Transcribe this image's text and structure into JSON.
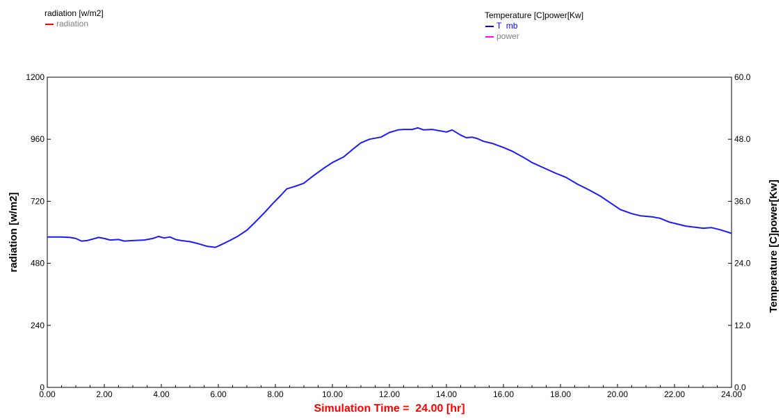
{
  "legend_left": {
    "title": "radiation [w/m2]",
    "entries": [
      {
        "label": "radiation",
        "color": "#ff0000",
        "text_color": "#808080"
      }
    ]
  },
  "legend_right": {
    "title": "Temperature [C]power[Kw]",
    "entries": [
      {
        "label": "T  mb",
        "color": "#0000ff",
        "text_color": "#0000ff"
      },
      {
        "label": "power",
        "color": "#ff00ff",
        "text_color": "#808080"
      }
    ]
  },
  "colors": {
    "line": "#1a1aff",
    "axis": "#000000",
    "grid": "#ffffff",
    "xlabel": "#ff0000"
  },
  "chart_data": {
    "type": "line",
    "xlabel": "Simulation Time =  24.00 [hr]",
    "ylabel": "radiation [w/m2]",
    "y2label": "Temperature [C]power[Kw]",
    "xlim": [
      0,
      24
    ],
    "ylim": [
      0,
      1200
    ],
    "y2lim": [
      0,
      60
    ],
    "x_ticks": [
      "0.00",
      "2.00",
      "4.00",
      "6.00",
      "8.00",
      "10.00",
      "12.00",
      "14.00",
      "16.00",
      "18.00",
      "20.00",
      "22.00",
      "24.00"
    ],
    "y_ticks": [
      "0",
      "240",
      "480",
      "720",
      "960",
      "1200"
    ],
    "y2_ticks": [
      "0.0",
      "12.0",
      "24.0",
      "36.0",
      "48.0",
      "60.0"
    ],
    "series": [
      {
        "name": "T  mb",
        "axis": "right",
        "x": [
          0,
          0.5,
          0.8,
          1.0,
          1.2,
          1.4,
          1.6,
          1.8,
          2.0,
          2.2,
          2.5,
          2.7,
          3.0,
          3.4,
          3.7,
          3.9,
          4.1,
          4.3,
          4.5,
          4.7,
          5.0,
          5.3,
          5.6,
          5.9,
          6.1,
          6.4,
          6.7,
          7.0,
          7.3,
          7.6,
          7.9,
          8.2,
          8.4,
          8.7,
          9.0,
          9.3,
          9.7,
          10.0,
          10.4,
          10.7,
          11.0,
          11.3,
          11.7,
          12.0,
          12.3,
          12.5,
          12.8,
          13.0,
          13.2,
          13.5,
          13.8,
          14.0,
          14.2,
          14.5,
          14.7,
          14.9,
          15.1,
          15.3,
          15.6,
          16.0,
          16.3,
          16.7,
          17.0,
          17.4,
          17.8,
          18.2,
          18.6,
          19.0,
          19.4,
          19.8,
          20.1,
          20.5,
          20.8,
          21.2,
          21.5,
          21.8,
          22.1,
          22.4,
          22.7,
          23.0,
          23.3,
          23.6,
          24.0
        ],
        "y": [
          29.1,
          29.1,
          29.0,
          28.8,
          28.3,
          28.4,
          28.7,
          29.0,
          28.8,
          28.5,
          28.6,
          28.3,
          28.4,
          28.5,
          28.8,
          29.2,
          28.9,
          29.1,
          28.6,
          28.4,
          28.2,
          27.8,
          27.3,
          27.1,
          27.6,
          28.4,
          29.3,
          30.4,
          32.0,
          33.7,
          35.5,
          37.2,
          38.4,
          38.9,
          39.5,
          40.8,
          42.4,
          43.5,
          44.6,
          46.0,
          47.3,
          48.0,
          48.4,
          49.3,
          49.8,
          49.9,
          49.9,
          50.2,
          49.8,
          49.9,
          49.6,
          49.4,
          49.8,
          48.8,
          48.3,
          48.4,
          48.1,
          47.6,
          47.2,
          46.4,
          45.7,
          44.5,
          43.5,
          42.5,
          41.5,
          40.6,
          39.3,
          38.2,
          37.0,
          35.5,
          34.4,
          33.6,
          33.2,
          33.0,
          32.7,
          32.0,
          31.6,
          31.2,
          31.0,
          30.8,
          30.9,
          30.5,
          29.8
        ]
      }
    ],
    "grid": true,
    "legend": "top"
  }
}
